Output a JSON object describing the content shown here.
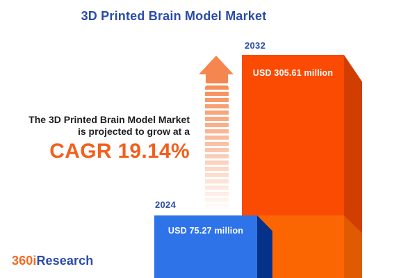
{
  "page": {
    "title": "3D Printed Brain Model Market"
  },
  "annotation": {
    "line1": "The 3D Printed Brain Model Market",
    "line2": "is projected to grow at a",
    "cagr": "CAGR 19.14%"
  },
  "bars": [
    {
      "year": "2024",
      "value_label": "USD 75.27 million"
    },
    {
      "year": "2032",
      "value_label": "USD 305.61 million"
    }
  ],
  "logo": {
    "prefix": "360i",
    "suffix": "Research"
  },
  "icons": {
    "arrow": "growth-up-arrow"
  },
  "colors": {
    "title_blue": "#2A4BAB",
    "accent_orange": "#F2601D",
    "logo_orange": "#F26A21",
    "text_dark": "#1E1E1E",
    "bar_2024_face": "#2E73E8",
    "bar_2024_side": "#053189",
    "bar_2032_face": "#FB4A02",
    "bar_2032_side": "#D23E02",
    "bar_front_face": "#FB6602",
    "bar_front_side": "#DF5A03",
    "arrow_orange": "#F5864F"
  },
  "chart_data": {
    "type": "bar",
    "title": "3D Printed Brain Model Market",
    "categories": [
      "2024",
      "2032"
    ],
    "values": [
      75.27,
      305.61
    ],
    "unit": "USD million",
    "value_labels": [
      "USD 75.27 million",
      "USD 305.61 million"
    ],
    "bar_colors": [
      "#2E73E8",
      "#FB4A02"
    ],
    "annotation": "The 3D Printed Brain Model Market is projected to grow at a CAGR 19.14%",
    "cagr_percent": 19.14,
    "legend": "none",
    "grid": false,
    "axes_shown": false,
    "style": "3d-bars"
  }
}
